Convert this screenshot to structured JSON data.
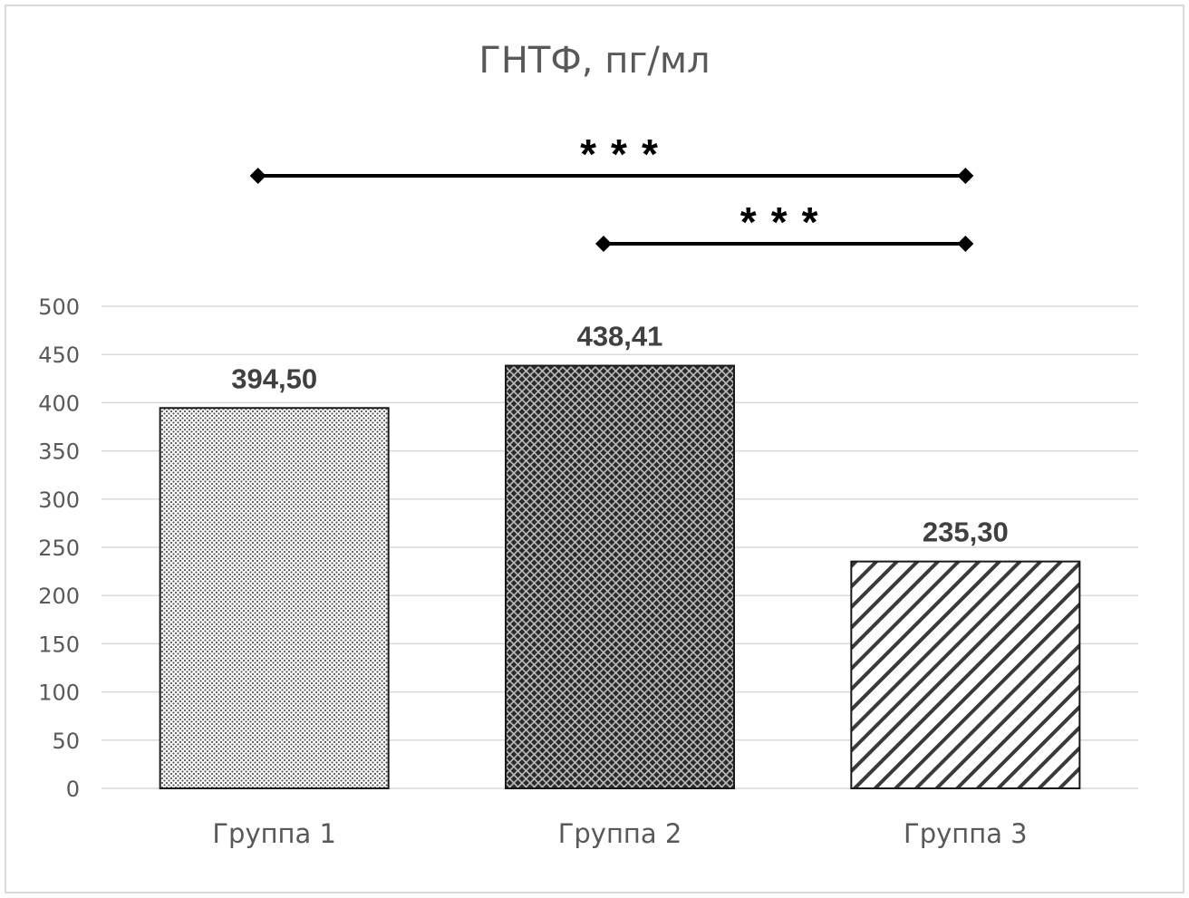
{
  "chart_data": {
    "type": "bar",
    "title": "ГНТФ, пг/мл",
    "categories": [
      "Группа 1",
      "Группа 2",
      "Группа 3"
    ],
    "values": [
      394.5,
      438.41,
      235.3
    ],
    "data_labels": [
      "394,50",
      "438,41",
      "235,30"
    ],
    "xlabel": "",
    "ylabel": "",
    "ylim": [
      0,
      500
    ],
    "yticks": [
      0,
      50,
      100,
      150,
      200,
      250,
      300,
      350,
      400,
      450,
      500
    ],
    "grid": true,
    "legend": "none",
    "bar_patterns": [
      "dots",
      "crosshatch-dark",
      "diagonal-stripes"
    ],
    "colors": {
      "grid": "#d9d9d9",
      "text": "#595959",
      "label": "#404040",
      "bracket": "#000000"
    },
    "significance": [
      {
        "from": "Группа 1",
        "to": "Группа 3",
        "label": "***"
      },
      {
        "from": "Группа 2",
        "to": "Группа 3",
        "label": "***"
      }
    ]
  }
}
